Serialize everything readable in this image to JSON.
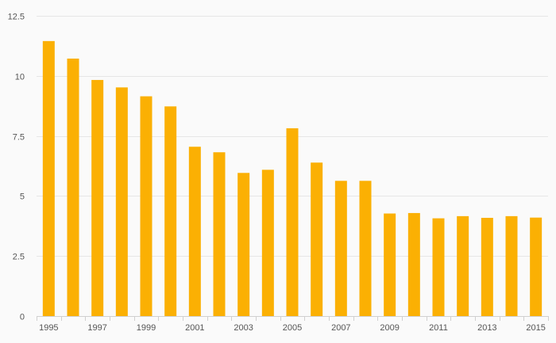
{
  "chart_data": {
    "type": "bar",
    "title": "",
    "xlabel": "",
    "ylabel": "",
    "categories": [
      "1995",
      "1996",
      "1997",
      "1998",
      "1999",
      "2000",
      "2001",
      "2002",
      "2003",
      "2004",
      "2005",
      "2006",
      "2007",
      "2008",
      "2009",
      "2010",
      "2011",
      "2012",
      "2013",
      "2014",
      "2015"
    ],
    "x_tick_labels": [
      "1995",
      "",
      "1997",
      "",
      "1999",
      "",
      "2001",
      "",
      "2003",
      "",
      "2005",
      "",
      "2007",
      "",
      "2009",
      "",
      "2011",
      "",
      "2013",
      "",
      "2015"
    ],
    "values": [
      11.45,
      10.72,
      9.83,
      9.52,
      9.15,
      8.73,
      7.05,
      6.82,
      5.96,
      6.09,
      7.82,
      6.39,
      5.63,
      5.63,
      4.27,
      4.29,
      4.07,
      4.16,
      4.09,
      4.16,
      4.1
    ],
    "ylim": [
      0,
      12.5
    ],
    "y_ticks": [
      0,
      2.5,
      5,
      7.5,
      10,
      12.5
    ],
    "y_tick_labels": [
      "0",
      "2.5",
      "5",
      "7.5",
      "10",
      "12.5"
    ],
    "grid": true,
    "legend": "none",
    "bar_color": "#fbb003"
  }
}
